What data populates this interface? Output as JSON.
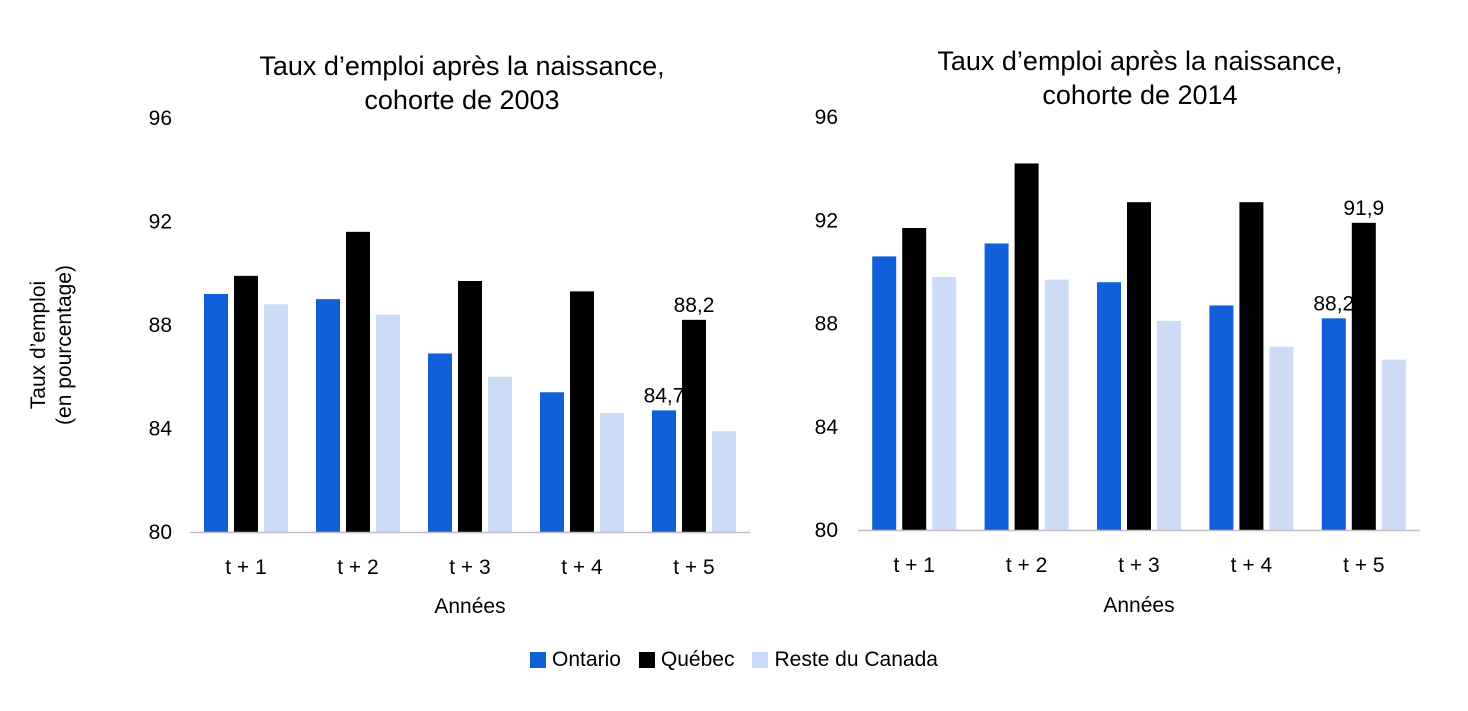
{
  "y_axis_title_lines": [
    "Taux d’emploi",
    "(en pourcentage)"
  ],
  "legend": [
    {
      "name": "Ontario",
      "color": "#1160D9"
    },
    {
      "name": "Québec",
      "color": "#000000"
    },
    {
      "name": "Reste du Canada",
      "color": "#CCDCF7"
    }
  ],
  "chart_data": [
    {
      "type": "bar",
      "title": "Taux d’emploi après la naissance, cohorte de 2003",
      "title_lines": [
        "Taux d’emploi après la naissance,",
        "cohorte de 2003"
      ],
      "xlabel": "Années",
      "ylabel": "Taux d’emploi (en pourcentage)",
      "ylim": [
        80,
        96
      ],
      "yticks": [
        "80",
        "84",
        "88",
        "92",
        "96"
      ],
      "categories": [
        "t + 1",
        "t + 2",
        "t + 3",
        "t + 4",
        "t + 5"
      ],
      "series": [
        {
          "name": "Ontario",
          "values": [
            89.2,
            89.0,
            86.9,
            85.4,
            84.7
          ]
        },
        {
          "name": "Québec",
          "values": [
            89.9,
            91.6,
            89.7,
            89.3,
            88.2
          ]
        },
        {
          "name": "Reste du Canada",
          "values": [
            88.8,
            88.4,
            86.0,
            84.6,
            83.9
          ]
        }
      ],
      "data_labels": [
        {
          "series": 0,
          "category": 4,
          "text": "84,7"
        },
        {
          "series": 1,
          "category": 4,
          "text": "88,2"
        }
      ],
      "grid": false,
      "legend_position": "bottom"
    },
    {
      "type": "bar",
      "title": "Taux d’emploi après la naissance, cohorte de 2014",
      "title_lines": [
        "Taux d’emploi après la naissance,",
        "cohorte de 2014"
      ],
      "xlabel": "Années",
      "ylim": [
        80,
        96
      ],
      "yticks": [
        "80",
        "84",
        "88",
        "92",
        "96"
      ],
      "categories": [
        "t + 1",
        "t + 2",
        "t + 3",
        "t + 4",
        "t + 5"
      ],
      "series": [
        {
          "name": "Ontario",
          "values": [
            90.6,
            91.1,
            89.6,
            88.7,
            88.2
          ]
        },
        {
          "name": "Québec",
          "values": [
            91.7,
            94.2,
            92.7,
            92.7,
            91.9
          ]
        },
        {
          "name": "Reste du Canada",
          "values": [
            89.8,
            89.7,
            88.1,
            87.1,
            86.6
          ]
        }
      ],
      "data_labels": [
        {
          "series": 0,
          "category": 4,
          "text": "88,2"
        },
        {
          "series": 1,
          "category": 4,
          "text": "91,9"
        }
      ],
      "grid": false,
      "legend_position": "bottom"
    }
  ]
}
